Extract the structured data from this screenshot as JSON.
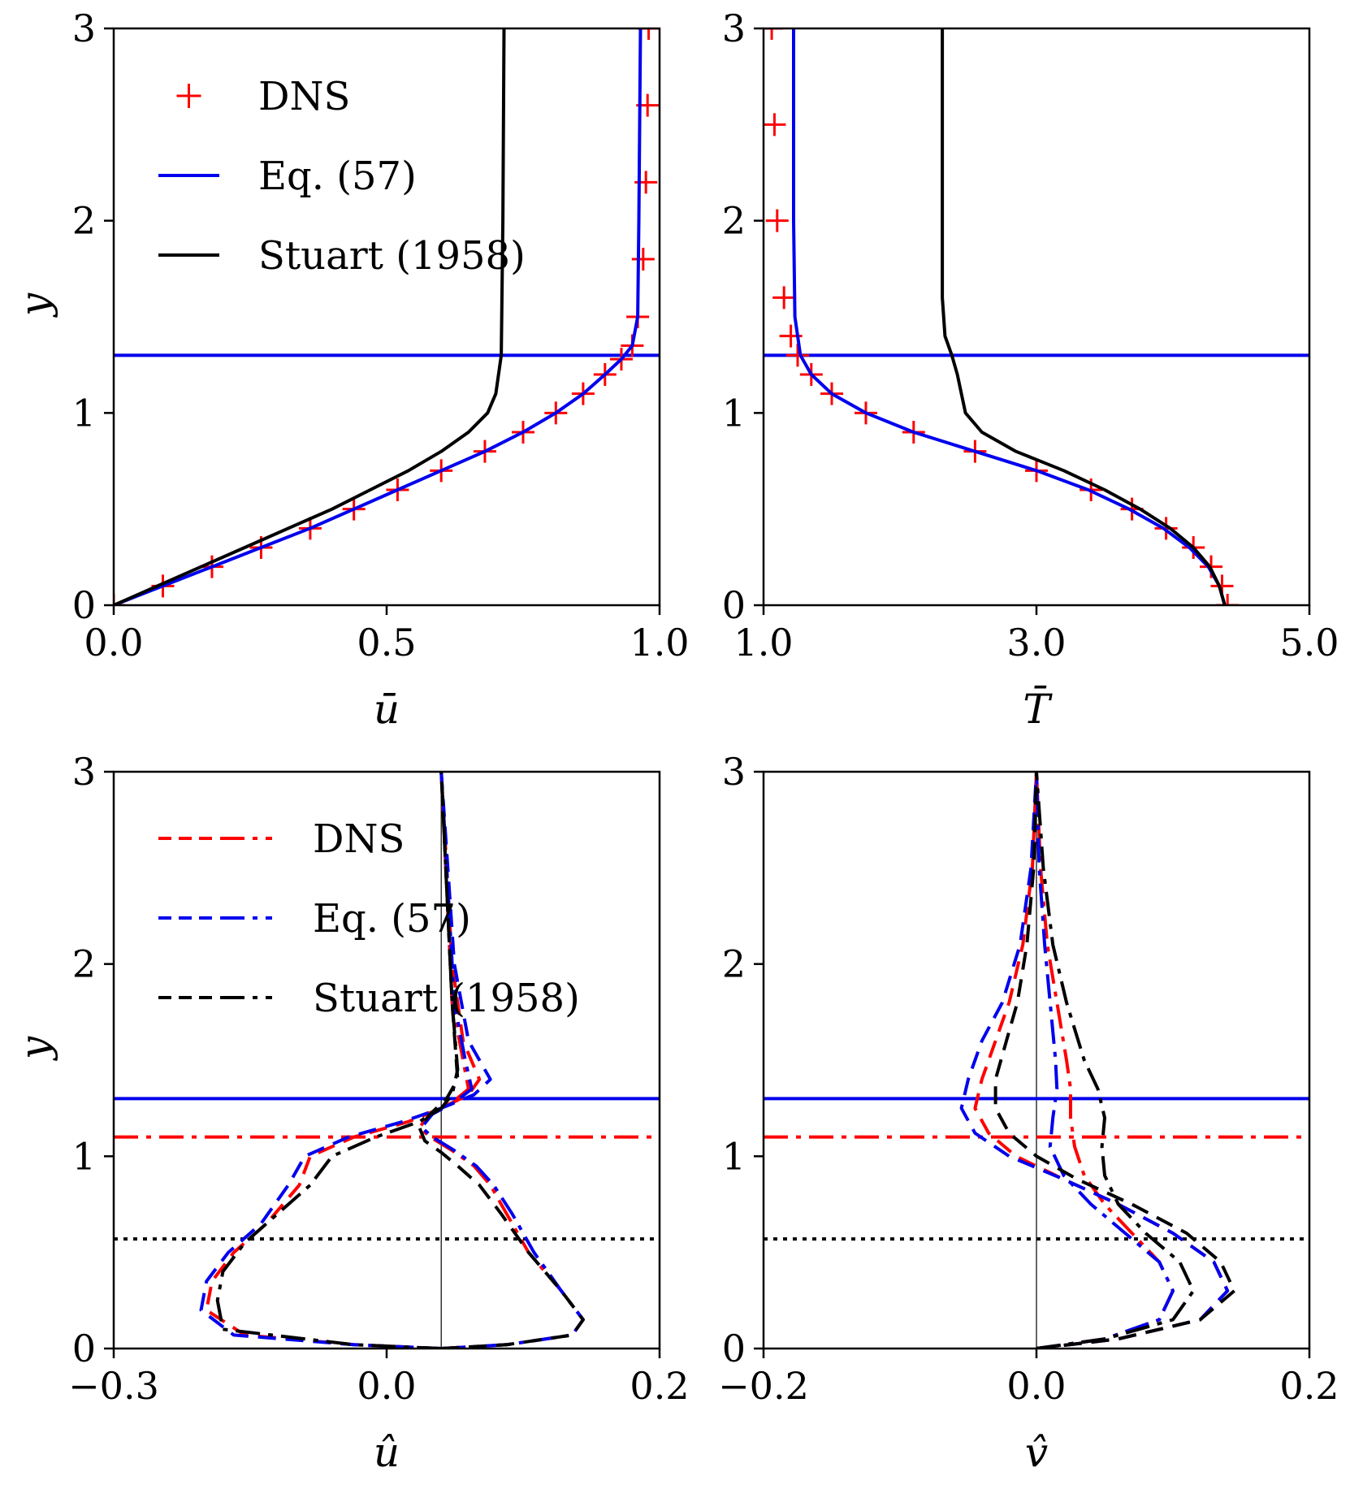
{
  "chart_data": [
    {
      "type": "line",
      "panel": "top-left",
      "xlabel": "ū",
      "ylabel": "y",
      "xlim": [
        0,
        1
      ],
      "ylim": [
        0,
        3
      ],
      "xticks": [
        "0.0",
        "0.5",
        "1.0"
      ],
      "yticks": [
        "0",
        "1",
        "2",
        "3"
      ],
      "legend": {
        "placement": "top-left",
        "entries": [
          "DNS",
          "Eq. (57)",
          "Stuart (1958)"
        ]
      },
      "hlines": [
        {
          "y": 1.3,
          "color": "#0000ee",
          "style": "solid"
        }
      ],
      "series": [
        {
          "name": "DNS",
          "color": "#ff0000",
          "marker": "+",
          "x": [
            0.0,
            0.09,
            0.18,
            0.27,
            0.36,
            0.44,
            0.52,
            0.6,
            0.68,
            0.75,
            0.81,
            0.86,
            0.9,
            0.93,
            0.95,
            0.96,
            0.97,
            0.975,
            0.978,
            0.98
          ],
          "y": [
            0.0,
            0.1,
            0.2,
            0.3,
            0.4,
            0.5,
            0.6,
            0.7,
            0.8,
            0.9,
            1.0,
            1.1,
            1.2,
            1.28,
            1.35,
            1.5,
            1.8,
            2.2,
            2.6,
            3.0
          ]
        },
        {
          "name": "Eq. (57)",
          "color": "#0000ee",
          "style": "solid",
          "x": [
            0.0,
            0.09,
            0.18,
            0.27,
            0.36,
            0.44,
            0.52,
            0.6,
            0.68,
            0.75,
            0.81,
            0.86,
            0.9,
            0.93,
            0.95,
            0.96,
            0.962,
            0.965
          ],
          "y": [
            0.0,
            0.1,
            0.2,
            0.3,
            0.4,
            0.5,
            0.6,
            0.7,
            0.8,
            0.9,
            1.0,
            1.1,
            1.2,
            1.28,
            1.35,
            1.5,
            2.0,
            3.0
          ]
        },
        {
          "name": "Stuart (1958)",
          "color": "#000000",
          "style": "solid",
          "x": [
            0.0,
            0.08,
            0.16,
            0.24,
            0.32,
            0.4,
            0.47,
            0.54,
            0.6,
            0.65,
            0.685,
            0.7,
            0.71,
            0.713,
            0.715
          ],
          "y": [
            0.0,
            0.1,
            0.2,
            0.3,
            0.4,
            0.5,
            0.6,
            0.7,
            0.8,
            0.9,
            1.0,
            1.1,
            1.3,
            2.0,
            3.0
          ]
        }
      ]
    },
    {
      "type": "line",
      "panel": "top-right",
      "xlabel": "T̄",
      "ylabel": "",
      "xlim": [
        1,
        5
      ],
      "ylim": [
        0,
        3
      ],
      "xticks": [
        "1.0",
        "3.0",
        "5.0"
      ],
      "yticks": [
        "0",
        "1",
        "2",
        "3"
      ],
      "hlines": [
        {
          "y": 1.3,
          "color": "#0000ee",
          "style": "solid"
        }
      ],
      "series": [
        {
          "name": "DNS",
          "color": "#ff0000",
          "marker": "+",
          "x": [
            4.4,
            4.36,
            4.28,
            4.15,
            3.95,
            3.7,
            3.4,
            3.0,
            2.55,
            2.1,
            1.75,
            1.5,
            1.35,
            1.25,
            1.2,
            1.15,
            1.1,
            1.08,
            1.06
          ],
          "y": [
            0.0,
            0.1,
            0.2,
            0.3,
            0.4,
            0.5,
            0.6,
            0.7,
            0.8,
            0.9,
            1.0,
            1.1,
            1.2,
            1.3,
            1.4,
            1.6,
            2.0,
            2.5,
            3.0
          ]
        },
        {
          "name": "Eq. (57)",
          "color": "#0000ee",
          "style": "solid",
          "x": [
            4.38,
            4.34,
            4.26,
            4.12,
            3.93,
            3.68,
            3.38,
            3.0,
            2.55,
            2.1,
            1.75,
            1.5,
            1.35,
            1.27,
            1.23,
            1.22,
            1.22
          ],
          "y": [
            0.0,
            0.1,
            0.2,
            0.3,
            0.4,
            0.5,
            0.6,
            0.7,
            0.8,
            0.9,
            1.0,
            1.1,
            1.2,
            1.3,
            1.5,
            2.0,
            3.0
          ]
        },
        {
          "name": "Stuart (1958)",
          "color": "#000000",
          "style": "solid",
          "x": [
            4.38,
            4.34,
            4.27,
            4.15,
            3.98,
            3.76,
            3.5,
            3.2,
            2.85,
            2.6,
            2.48,
            2.45,
            2.42,
            2.38,
            2.33,
            2.31,
            2.31,
            2.31
          ],
          "y": [
            0.0,
            0.1,
            0.2,
            0.3,
            0.4,
            0.5,
            0.6,
            0.7,
            0.8,
            0.9,
            1.0,
            1.1,
            1.2,
            1.3,
            1.4,
            1.6,
            2.0,
            3.0
          ]
        }
      ]
    },
    {
      "type": "line",
      "panel": "bottom-left",
      "xlabel": "û",
      "ylabel": "y",
      "xlim": [
        -0.3,
        0.2
      ],
      "ylim": [
        0,
        3
      ],
      "xticks": [
        "−0.3",
        "0.0",
        "0.2"
      ],
      "yticks": [
        "0",
        "1",
        "2",
        "3"
      ],
      "legend": {
        "placement": "top-left",
        "entries": [
          "DNS",
          "Eq. (57)",
          "Stuart (1958)"
        ]
      },
      "hlines": [
        {
          "y": 1.3,
          "color": "#0000ee",
          "style": "solid"
        },
        {
          "y": 1.1,
          "color": "#ff0000",
          "style": "dashdot"
        },
        {
          "y": 0.57,
          "color": "#000000",
          "style": "dotted"
        }
      ],
      "vlines": [
        {
          "x": 0.0,
          "color": "#000000",
          "style": "thin"
        }
      ],
      "series": [
        {
          "name": "DNS (dashed, real)",
          "color": "#ff0000",
          "style": "dashed",
          "x": [
            0.0,
            -0.08,
            -0.18,
            -0.215,
            -0.21,
            -0.19,
            -0.16,
            -0.13,
            -0.12,
            -0.08,
            -0.03,
            0.0,
            0.025,
            0.035,
            0.02,
            0.01,
            0.005,
            0.0
          ],
          "y": [
            0.0,
            0.02,
            0.07,
            0.2,
            0.35,
            0.5,
            0.65,
            0.85,
            1.0,
            1.1,
            1.18,
            1.25,
            1.32,
            1.4,
            1.6,
            2.0,
            2.5,
            3.0
          ]
        },
        {
          "name": "DNS (dashdot, imag)",
          "color": "#ff0000",
          "style": "dashdot",
          "x": [
            0.0,
            0.06,
            0.12,
            0.13,
            0.11,
            0.08,
            0.06,
            0.045,
            0.03,
            0.01,
            -0.01,
            -0.02,
            -0.01,
            0.01,
            0.025,
            0.02,
            0.01,
            0.005,
            0.0
          ],
          "y": [
            0.0,
            0.02,
            0.07,
            0.15,
            0.3,
            0.5,
            0.7,
            0.85,
            0.95,
            1.03,
            1.1,
            1.15,
            1.22,
            1.28,
            1.35,
            1.5,
            1.8,
            2.4,
            3.0
          ]
        },
        {
          "name": "Eq. (57) (dashed, real)",
          "color": "#0000ee",
          "style": "dashed",
          "x": [
            0.0,
            -0.08,
            -0.19,
            -0.22,
            -0.215,
            -0.195,
            -0.165,
            -0.14,
            -0.125,
            -0.085,
            -0.035,
            0.0,
            0.03,
            0.045,
            0.025,
            0.012,
            0.006,
            0.0
          ],
          "y": [
            0.0,
            0.02,
            0.07,
            0.2,
            0.35,
            0.5,
            0.65,
            0.85,
            1.0,
            1.1,
            1.18,
            1.25,
            1.32,
            1.4,
            1.6,
            2.0,
            2.5,
            3.0
          ]
        },
        {
          "name": "Eq. (57) (dashdot, imag)",
          "color": "#0000ee",
          "style": "dashdot",
          "x": [
            0.0,
            0.06,
            0.12,
            0.13,
            0.11,
            0.085,
            0.065,
            0.048,
            0.032,
            0.012,
            -0.008,
            -0.018,
            -0.008,
            0.012,
            0.028,
            0.022,
            0.012,
            0.006,
            0.0
          ],
          "y": [
            0.0,
            0.02,
            0.07,
            0.15,
            0.3,
            0.5,
            0.7,
            0.85,
            0.95,
            1.03,
            1.1,
            1.15,
            1.22,
            1.28,
            1.35,
            1.5,
            1.8,
            2.4,
            3.0
          ]
        },
        {
          "name": "Stuart (1958) (dashed, real)",
          "color": "#000000",
          "style": "dashed",
          "x": [
            0.0,
            0.06,
            0.12,
            0.13,
            0.11,
            0.08,
            0.055,
            0.035,
            0.015,
            0.0,
            -0.015,
            -0.02,
            -0.01,
            0.005,
            0.015,
            0.01,
            0.005,
            0.0
          ],
          "y": [
            0.0,
            0.02,
            0.07,
            0.15,
            0.3,
            0.5,
            0.7,
            0.85,
            0.95,
            1.02,
            1.08,
            1.15,
            1.22,
            1.3,
            1.4,
            1.8,
            2.4,
            3.0
          ]
        },
        {
          "name": "Stuart (1958) (dashdot, imag)",
          "color": "#000000",
          "style": "dashdot",
          "x": [
            0.0,
            -0.08,
            -0.2,
            -0.205,
            -0.2,
            -0.18,
            -0.15,
            -0.12,
            -0.1,
            -0.06,
            -0.02,
            0.0,
            0.01,
            0.015,
            0.01,
            0.005,
            0.0
          ],
          "y": [
            0.0,
            0.02,
            0.1,
            0.25,
            0.4,
            0.55,
            0.7,
            0.85,
            1.0,
            1.1,
            1.18,
            1.25,
            1.32,
            1.45,
            1.8,
            2.4,
            3.0
          ]
        }
      ]
    },
    {
      "type": "line",
      "panel": "bottom-right",
      "xlabel": "v̂",
      "ylabel": "",
      "xlim": [
        -0.2,
        0.2
      ],
      "ylim": [
        0,
        3
      ],
      "xticks": [
        "−0.2",
        "0.0",
        "0.2"
      ],
      "yticks": [
        "0",
        "1",
        "2",
        "3"
      ],
      "hlines": [
        {
          "y": 1.3,
          "color": "#0000ee",
          "style": "solid"
        },
        {
          "y": 1.1,
          "color": "#ff0000",
          "style": "dashdot"
        },
        {
          "y": 0.57,
          "color": "#000000",
          "style": "dotted"
        }
      ],
      "vlines": [
        {
          "x": 0.0,
          "color": "#000000",
          "style": "thin"
        }
      ],
      "series": [
        {
          "name": "DNS (dashed, real)",
          "color": "#ff0000",
          "style": "dashed",
          "x": [
            0.0,
            0.06,
            0.12,
            0.14,
            0.13,
            0.1,
            0.06,
            0.02,
            -0.015,
            -0.035,
            -0.045,
            -0.04,
            -0.03,
            -0.02,
            -0.01,
            -0.003,
            0.0
          ],
          "y": [
            0.0,
            0.05,
            0.15,
            0.3,
            0.45,
            0.6,
            0.75,
            0.88,
            1.0,
            1.12,
            1.25,
            1.4,
            1.6,
            1.8,
            2.1,
            2.5,
            3.0
          ]
        },
        {
          "name": "DNS (dashdot, imag)",
          "color": "#ff0000",
          "style": "dashdot",
          "x": [
            0.0,
            0.05,
            0.09,
            0.1,
            0.09,
            0.07,
            0.05,
            0.035,
            0.028,
            0.025,
            0.025,
            0.022,
            0.015,
            0.008,
            0.003,
            0.0
          ],
          "y": [
            0.0,
            0.05,
            0.15,
            0.3,
            0.45,
            0.6,
            0.75,
            0.9,
            1.05,
            1.2,
            1.35,
            1.5,
            1.8,
            2.1,
            2.5,
            3.0
          ]
        },
        {
          "name": "Eq. (57) (dashed, real)",
          "color": "#0000ee",
          "style": "dashed",
          "x": [
            0.0,
            0.06,
            0.12,
            0.14,
            0.13,
            0.1,
            0.06,
            0.02,
            -0.02,
            -0.045,
            -0.055,
            -0.05,
            -0.04,
            -0.025,
            -0.012,
            -0.004,
            0.0
          ],
          "y": [
            0.0,
            0.05,
            0.15,
            0.3,
            0.45,
            0.6,
            0.75,
            0.88,
            1.0,
            1.12,
            1.25,
            1.4,
            1.6,
            1.8,
            2.1,
            2.5,
            3.0
          ]
        },
        {
          "name": "Eq. (57) (dashdot, imag)",
          "color": "#0000ee",
          "style": "dashdot",
          "x": [
            0.0,
            0.05,
            0.09,
            0.1,
            0.09,
            0.065,
            0.04,
            0.02,
            0.01,
            0.012,
            0.015,
            0.014,
            0.01,
            0.006,
            0.002,
            0.0
          ],
          "y": [
            0.0,
            0.05,
            0.15,
            0.3,
            0.45,
            0.6,
            0.75,
            0.9,
            1.05,
            1.2,
            1.35,
            1.5,
            1.8,
            2.1,
            2.5,
            3.0
          ]
        },
        {
          "name": "Stuart (1958) (dashed, real)",
          "color": "#000000",
          "style": "dashed",
          "x": [
            0.0,
            0.06,
            0.12,
            0.145,
            0.135,
            0.11,
            0.07,
            0.03,
            0.0,
            -0.02,
            -0.03,
            -0.03,
            -0.022,
            -0.014,
            -0.007,
            -0.002,
            0.0
          ],
          "y": [
            0.0,
            0.05,
            0.15,
            0.3,
            0.45,
            0.6,
            0.75,
            0.88,
            1.0,
            1.12,
            1.25,
            1.4,
            1.6,
            1.8,
            2.1,
            2.5,
            3.0
          ]
        },
        {
          "name": "Stuart (1958) (dashdot, imag)",
          "color": "#000000",
          "style": "dashdot",
          "x": [
            0.0,
            0.05,
            0.1,
            0.115,
            0.105,
            0.08,
            0.06,
            0.05,
            0.048,
            0.05,
            0.045,
            0.035,
            0.022,
            0.012,
            0.005,
            0.0
          ],
          "y": [
            0.0,
            0.05,
            0.15,
            0.3,
            0.45,
            0.6,
            0.75,
            0.9,
            1.05,
            1.2,
            1.35,
            1.5,
            1.8,
            2.1,
            2.5,
            3.0
          ]
        }
      ]
    }
  ]
}
